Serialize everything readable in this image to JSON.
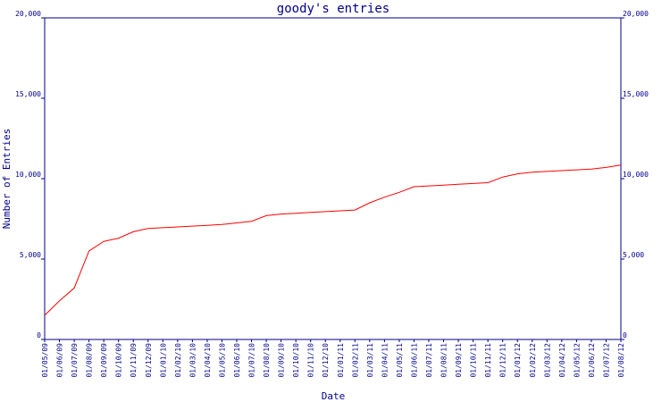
{
  "chart_data": {
    "type": "line",
    "title": "goody's entries",
    "xlabel": "Date",
    "ylabel": "Number of Entries",
    "ylim": [
      0,
      20000
    ],
    "yticks": [
      0,
      5000,
      10000,
      15000,
      20000
    ],
    "ytick_labels": [
      "0",
      "5,000",
      "10,000",
      "15,000",
      "20,000"
    ],
    "grid": false,
    "colors": {
      "axis": "#00008b",
      "line": "#ff0000"
    },
    "categories": [
      "01/05/09",
      "01/06/09",
      "01/07/09",
      "01/08/09",
      "01/09/09",
      "01/10/09",
      "01/11/09",
      "01/12/09",
      "01/01/10",
      "01/02/10",
      "01/03/10",
      "01/04/10",
      "01/05/10",
      "01/06/10",
      "01/07/10",
      "01/08/10",
      "01/09/10",
      "01/10/10",
      "01/11/10",
      "01/12/10",
      "01/01/11",
      "01/02/11",
      "01/03/11",
      "01/04/11",
      "01/05/11",
      "01/06/11",
      "01/07/11",
      "01/08/11",
      "01/09/11",
      "01/10/11",
      "01/11/11",
      "01/12/11",
      "01/01/12",
      "01/02/12",
      "01/03/12",
      "01/04/12",
      "01/05/12",
      "01/06/12",
      "01/07/12",
      "01/08/12"
    ],
    "series": [
      {
        "values": [
          1500,
          2400,
          3200,
          5500,
          6100,
          6300,
          6700,
          6900,
          6950,
          7000,
          7050,
          7100,
          7150,
          7250,
          7350,
          7700,
          7800,
          7850,
          7900,
          7950,
          8000,
          8050,
          8500,
          8850,
          9150,
          9500,
          9550,
          9600,
          9650,
          9700,
          9750,
          10100,
          10300,
          10400,
          10450,
          10500,
          10550,
          10600,
          10700,
          10850
        ]
      }
    ]
  }
}
